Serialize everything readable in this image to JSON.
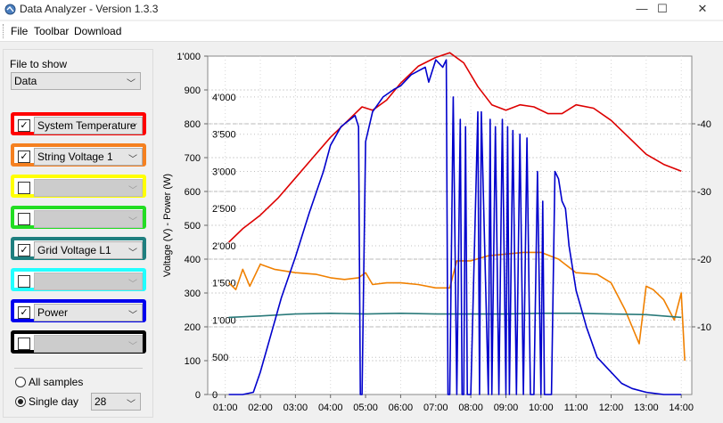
{
  "window": {
    "title": "Data Analyzer - Version 1.3.3",
    "minimize": "—",
    "maximize": "☐",
    "close": "✕"
  },
  "menu": [
    "File",
    "Toolbar",
    "Download"
  ],
  "panel": {
    "file_label": "File to show",
    "file_value": "Data",
    "series": [
      {
        "color": "#ff0000",
        "checked": true,
        "label": "System Temperature"
      },
      {
        "color": "#f58020",
        "checked": true,
        "label": "String Voltage 1"
      },
      {
        "color": "#ffff00",
        "checked": false,
        "label": ""
      },
      {
        "color": "#22dd22",
        "checked": false,
        "label": ""
      },
      {
        "color": "#1f7f7f",
        "checked": true,
        "label": "Grid Voltage L1"
      },
      {
        "color": "#22ffff",
        "checked": false,
        "label": ""
      },
      {
        "color": "#0000ee",
        "checked": true,
        "label": "Power"
      },
      {
        "color": "#000000",
        "checked": false,
        "label": ""
      }
    ],
    "all_samples": "All samples",
    "single_day": "Single day",
    "day_value": "28",
    "mode_selected": "single_day"
  },
  "chart_data": {
    "type": "line",
    "ylabel": "Voltage (V) - Power (W)",
    "x_ticks": [
      "01:00",
      "02:00",
      "03:00",
      "04:00",
      "05:00",
      "06:00",
      "07:00",
      "08:00",
      "09:00",
      "10:00",
      "11:00",
      "12:00",
      "13:00",
      "14:00"
    ],
    "xlim": [
      0.5,
      14.3
    ],
    "y_left_ticks": [
      "0",
      "100",
      "200",
      "300",
      "400",
      "500",
      "600",
      "700",
      "800",
      "900",
      "1'000"
    ],
    "ylim_left": [
      0,
      1000
    ],
    "y_power_ticks": [
      "0",
      "500",
      "1'000",
      "1'500",
      "2'000",
      "2'500",
      "3'000",
      "3'500",
      "4'000"
    ],
    "ylim_power": [
      0,
      4550
    ],
    "y_right_ticks": [
      "10",
      "20",
      "30",
      "40"
    ],
    "ylim_right": [
      0,
      50
    ],
    "grid": true,
    "series": [
      {
        "name": "System Temperature",
        "axis": "right",
        "color": "#dd0000",
        "x": [
          1.1,
          1.5,
          2.0,
          2.5,
          3.0,
          3.5,
          4.0,
          4.5,
          4.9,
          5.2,
          5.6,
          6.0,
          6.5,
          7.0,
          7.4,
          7.8,
          8.2,
          8.6,
          9.0,
          9.4,
          9.8,
          10.2,
          10.6,
          11.0,
          11.5,
          12.0,
          12.5,
          13.0,
          13.5,
          14.0
        ],
        "y": [
          22.5,
          24.5,
          26.5,
          29,
          32,
          35,
          38,
          40.5,
          42.5,
          42,
          43.5,
          46,
          48.5,
          49.8,
          50.5,
          49,
          45.5,
          42.8,
          42,
          42.8,
          42.5,
          41.5,
          41.5,
          42.8,
          42.3,
          40.5,
          38,
          35.5,
          34,
          33
        ]
      },
      {
        "name": "String Voltage 1",
        "axis": "left",
        "color": "#f08000",
        "x": [
          1.1,
          1.3,
          1.5,
          1.7,
          2.0,
          2.4,
          3.0,
          3.6,
          4.0,
          4.4,
          4.8,
          5.0,
          5.2,
          5.6,
          6.0,
          6.5,
          7.0,
          7.4,
          7.6,
          8.0,
          8.5,
          9.0,
          9.5,
          10.0,
          10.5,
          11.0,
          11.6,
          12.0,
          12.4,
          12.8,
          13.0,
          13.2,
          13.5,
          13.8,
          14.0,
          14.1
        ],
        "y": [
          330,
          310,
          370,
          320,
          385,
          370,
          360,
          355,
          345,
          340,
          345,
          360,
          325,
          330,
          330,
          325,
          315,
          315,
          395,
          395,
          410,
          415,
          420,
          420,
          400,
          360,
          355,
          330,
          250,
          150,
          320,
          310,
          280,
          220,
          300,
          100
        ]
      },
      {
        "name": "Grid Voltage L1",
        "axis": "left",
        "color": "#2a7a7a",
        "x": [
          1.1,
          2.0,
          3.0,
          4.0,
          5.0,
          6.0,
          7.0,
          8.0,
          9.0,
          10.0,
          11.0,
          12.0,
          13.0,
          14.0
        ],
        "y": [
          228,
          232,
          238,
          240,
          238,
          240,
          238,
          238,
          238,
          240,
          240,
          238,
          236,
          228
        ]
      },
      {
        "name": "Power",
        "axis": "power",
        "color": "#0000cc",
        "x": [
          1.1,
          1.5,
          1.8,
          2.0,
          2.3,
          2.6,
          3.0,
          3.4,
          3.8,
          4.0,
          4.3,
          4.7,
          4.8,
          4.85,
          4.9,
          5.0,
          5.2,
          5.5,
          5.8,
          6.0,
          6.3,
          6.5,
          6.7,
          6.8,
          7.0,
          7.2,
          7.3,
          7.35,
          7.4,
          7.5,
          7.6,
          7.7,
          7.75,
          7.8,
          7.85,
          7.9,
          8.0,
          8.2,
          8.25,
          8.3,
          8.5,
          8.55,
          8.6,
          8.7,
          8.8,
          8.9,
          9.0,
          9.05,
          9.1,
          9.2,
          9.3,
          9.4,
          9.5,
          9.6,
          9.7,
          9.8,
          9.9,
          10.0,
          10.05,
          10.1,
          10.2,
          10.3,
          10.4,
          10.5,
          10.6,
          10.7,
          10.8,
          11.0,
          11.3,
          11.6,
          12.0,
          12.3,
          12.6,
          13.0,
          13.5,
          14.0
        ],
        "y": [
          0,
          0,
          30,
          300,
          800,
          1300,
          1850,
          2450,
          3000,
          3350,
          3600,
          3750,
          3600,
          0,
          0,
          3400,
          3800,
          4000,
          4100,
          4150,
          4300,
          4350,
          4400,
          4200,
          4500,
          4400,
          4500,
          0,
          0,
          4000,
          0,
          3700,
          0,
          0,
          3600,
          0,
          0,
          3800,
          0,
          3800,
          0,
          3700,
          0,
          3600,
          0,
          3700,
          0,
          3600,
          0,
          3550,
          0,
          3500,
          0,
          3450,
          0,
          0,
          3000,
          0,
          2600,
          0,
          0,
          0,
          3000,
          2900,
          2600,
          2500,
          2000,
          1400,
          900,
          500,
          300,
          150,
          80,
          30,
          0,
          0
        ]
      }
    ]
  }
}
